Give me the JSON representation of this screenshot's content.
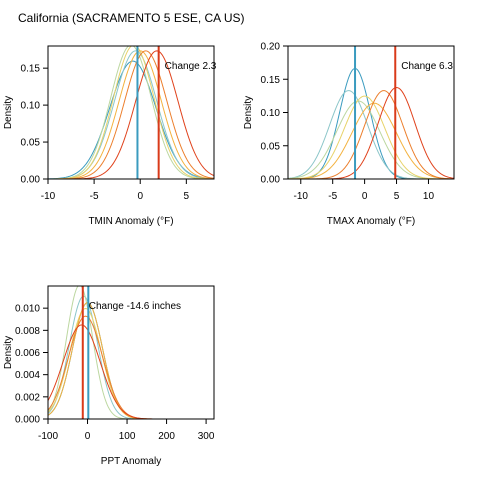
{
  "title": "California (SACRAMENTO 5 ESE, CA US)",
  "colors": [
    "#3a9bbf",
    "#8cc6c9",
    "#bcd7a0",
    "#e8d36a",
    "#f3b23f",
    "#ec7f2d",
    "#e0421c"
  ],
  "reference_line_colors": {
    "baseline": "#3a9bbf",
    "change": "#d93a1a"
  },
  "chart_data": [
    {
      "type": "line",
      "panel": "tmin",
      "xlabel": "TMIN Anomaly (°F)",
      "ylabel": "Density",
      "xlim": [
        -10,
        8
      ],
      "ylim": [
        0,
        0.18
      ],
      "xticks": [
        -10,
        -5,
        0,
        5
      ],
      "xtick_labels": [
        "-10",
        "-5",
        "0",
        "5"
      ],
      "yticks": [
        0,
        0.05,
        0.1,
        0.15
      ],
      "ytick_labels": [
        "0.00",
        "0.05",
        "0.10",
        "0.15"
      ],
      "annotation": "Change 2.3",
      "reference_lines": {
        "baseline": -0.3,
        "change": 2.0
      },
      "series": [
        {
          "mean": -0.8,
          "sd": 2.5
        },
        {
          "mean": -0.5,
          "sd": 2.3
        },
        {
          "mean": -1.0,
          "sd": 2.2
        },
        {
          "mean": -0.7,
          "sd": 2.2
        },
        {
          "mean": 0.0,
          "sd": 2.3
        },
        {
          "mean": 0.6,
          "sd": 2.3
        },
        {
          "mean": 1.8,
          "sd": 2.3
        }
      ]
    },
    {
      "type": "line",
      "panel": "tmax",
      "xlabel": "TMAX Anomaly (°F)",
      "ylabel": "Density",
      "xlim": [
        -12,
        14
      ],
      "ylim": [
        0,
        0.2
      ],
      "xticks": [
        -10,
        -5,
        0,
        5,
        10
      ],
      "xtick_labels": [
        "-10",
        "-5",
        "0",
        "5",
        "10"
      ],
      "yticks": [
        0,
        0.05,
        0.1,
        0.15,
        0.2
      ],
      "ytick_labels": [
        "0.00",
        "0.05",
        "0.10",
        "0.15",
        "0.20"
      ],
      "annotation": "Change 6.3",
      "reference_lines": {
        "baseline": -1.5,
        "change": 4.8
      },
      "series": [
        {
          "mean": -1.5,
          "sd": 2.4
        },
        {
          "mean": -2.5,
          "sd": 3.0
        },
        {
          "mean": -1.0,
          "sd": 3.4
        },
        {
          "mean": 0.0,
          "sd": 3.2
        },
        {
          "mean": 1.5,
          "sd": 3.5
        },
        {
          "mean": 3.0,
          "sd": 3.0
        },
        {
          "mean": 5.0,
          "sd": 2.9
        }
      ]
    },
    {
      "type": "line",
      "panel": "ppt",
      "xlabel": "PPT Anomaly",
      "ylabel": "Density",
      "xlim": [
        -100,
        320
      ],
      "ylim": [
        0,
        0.012
      ],
      "xticks": [
        -100,
        0,
        100,
        200,
        300
      ],
      "xtick_labels": [
        "-100",
        "0",
        "100",
        "200",
        "300"
      ],
      "yticks": [
        0,
        0.002,
        0.004,
        0.006,
        0.008,
        0.01
      ],
      "ytick_labels": [
        "0.000",
        "0.002",
        "0.004",
        "0.006",
        "0.008",
        "0.010"
      ],
      "annotation": "Change -14.6 inches",
      "reference_lines": {
        "baseline": 2,
        "change": -12
      },
      "series": [
        {
          "mean": 0,
          "sd": 38
        },
        {
          "mean": -10,
          "sd": 36
        },
        {
          "mean": -20,
          "sd": 33
        },
        {
          "mean": -5,
          "sd": 40
        },
        {
          "mean": 0,
          "sd": 38
        },
        {
          "mean": -5,
          "sd": 43
        },
        {
          "mean": -15,
          "sd": 47
        }
      ]
    }
  ]
}
